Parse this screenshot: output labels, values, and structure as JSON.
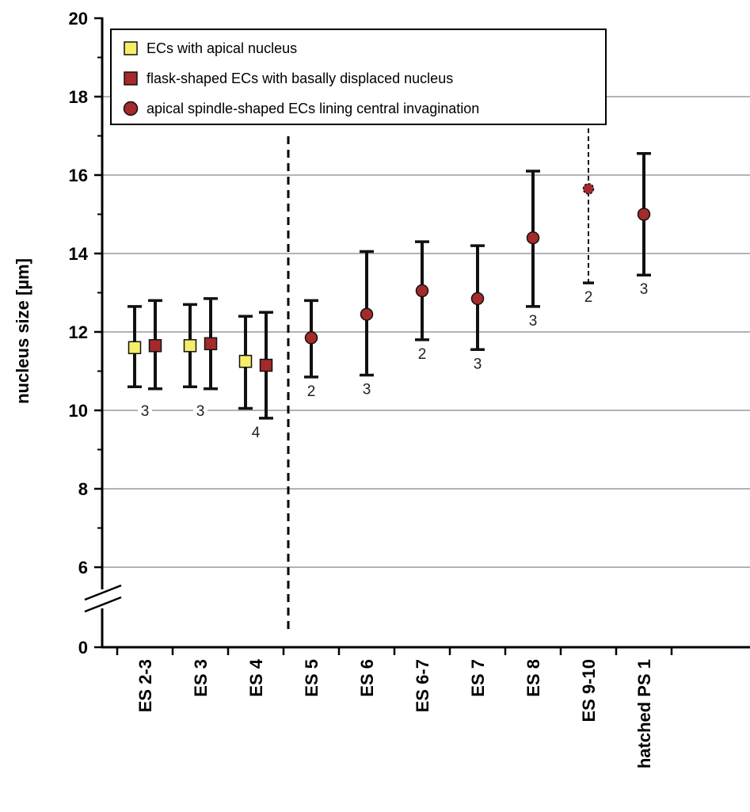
{
  "chart_data": {
    "type": "scatter",
    "ylabel": "nucleus size [µm]",
    "ylim": [
      0,
      20
    ],
    "axis_break": {
      "from": 0,
      "to": 6
    },
    "y_ticks": [
      0,
      6,
      8,
      10,
      12,
      14,
      16,
      18,
      20
    ],
    "grid": true,
    "legend_position": "top-left",
    "categories": [
      "ES 2-3",
      "ES 3",
      "ES 4",
      "ES 5",
      "ES 6",
      "ES 6-7",
      "ES 7",
      "ES 8",
      "ES 9-10",
      "hatched PS 1"
    ],
    "series": [
      {
        "name": "ECs with apical nucleus",
        "marker": "square",
        "color": "#f5ee6b",
        "points": [
          {
            "category": "ES 2-3",
            "mean": 11.6,
            "low": 10.6,
            "high": 12.65
          },
          {
            "category": "ES 3",
            "mean": 11.65,
            "low": 10.6,
            "high": 12.7
          },
          {
            "category": "ES 4",
            "mean": 11.25,
            "low": 10.05,
            "high": 12.4
          }
        ]
      },
      {
        "name": "flask-shaped ECs with basally displaced nucleus",
        "marker": "square",
        "color": "#a52a2a",
        "points": [
          {
            "category": "ES 2-3",
            "mean": 11.65,
            "low": 10.55,
            "high": 12.8
          },
          {
            "category": "ES 3",
            "mean": 11.7,
            "low": 10.55,
            "high": 12.85
          },
          {
            "category": "ES 4",
            "mean": 11.15,
            "low": 9.8,
            "high": 12.5
          }
        ]
      },
      {
        "name": "apical spindle-shaped ECs lining central invagination",
        "marker": "circle",
        "color": "#a52a2a",
        "points": [
          {
            "category": "ES 5",
            "mean": 11.85,
            "low": 10.85,
            "high": 12.8
          },
          {
            "category": "ES 6",
            "mean": 12.45,
            "low": 10.9,
            "high": 14.05
          },
          {
            "category": "ES 6-7",
            "mean": 13.05,
            "low": 11.8,
            "high": 14.3
          },
          {
            "category": "ES 7",
            "mean": 12.85,
            "low": 11.55,
            "high": 14.2
          },
          {
            "category": "ES 8",
            "mean": 14.4,
            "low": 12.65,
            "high": 16.1
          },
          {
            "category": "ES 9-10",
            "mean": 15.65,
            "low": 13.25,
            "high": 18.0,
            "dashed": true
          },
          {
            "category": "hatched PS 1",
            "mean": 15.0,
            "low": 13.45,
            "high": 16.55
          }
        ]
      }
    ],
    "sample_sizes": [
      {
        "category": "ES 2-3",
        "n": "3"
      },
      {
        "category": "ES 3",
        "n": "3"
      },
      {
        "category": "ES 4",
        "n": "4"
      },
      {
        "category": "ES 5",
        "n": "2"
      },
      {
        "category": "ES 6",
        "n": "3"
      },
      {
        "category": "ES 6-7",
        "n": "2"
      },
      {
        "category": "ES 7",
        "n": "3"
      },
      {
        "category": "ES 8",
        "n": "3"
      },
      {
        "category": "ES 9-10",
        "n": "2"
      },
      {
        "category": "hatched PS 1",
        "n": "3"
      }
    ],
    "divider_after_category": "ES 4"
  },
  "colors": {
    "axis": "#000000",
    "grid": "#9a9a9a",
    "apical_yellow": "#f5ee6b",
    "basal_red": "#a52a2a"
  }
}
